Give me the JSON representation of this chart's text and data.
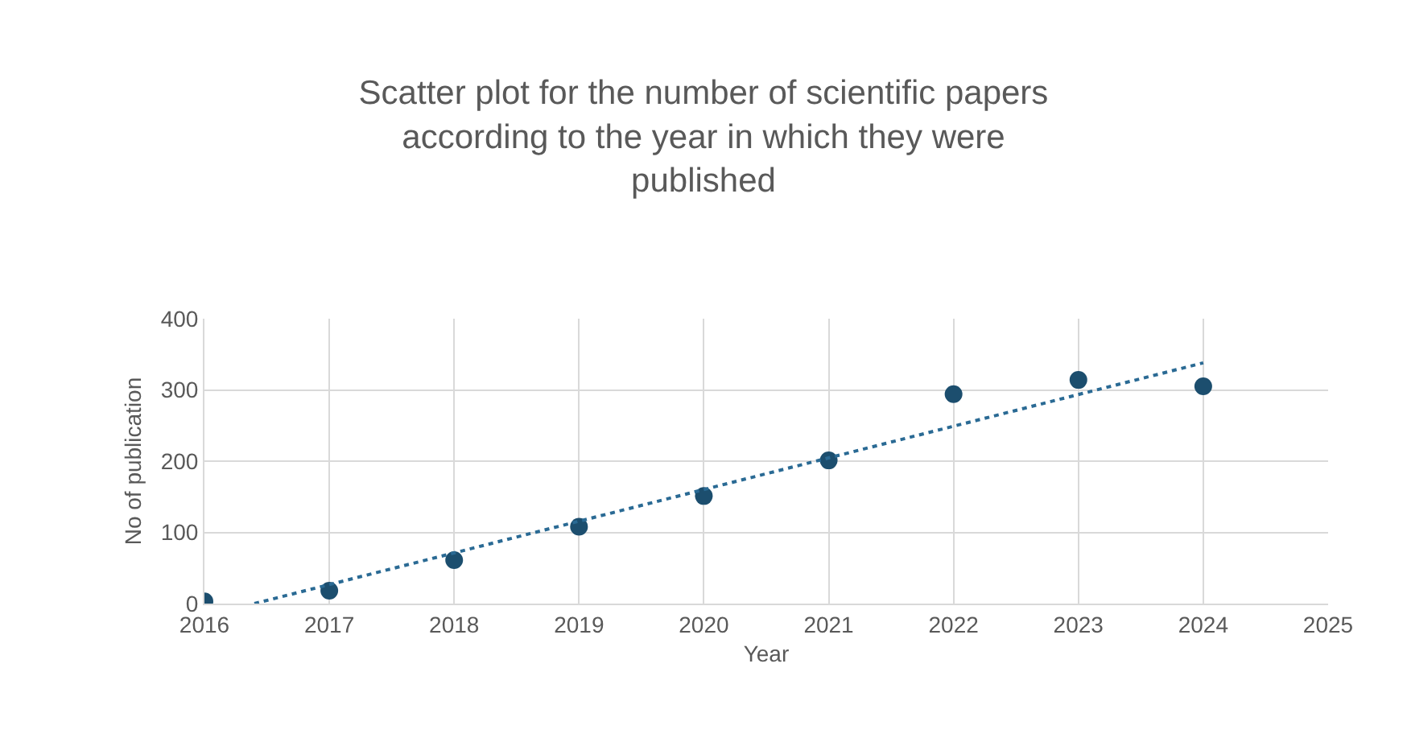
{
  "chart_data": {
    "type": "scatter",
    "title": "Scatter plot for the number of scientific papers according to the year in which they were published",
    "xlabel": "Year",
    "ylabel": "No of publication",
    "x": [
      2016,
      2017,
      2018,
      2019,
      2020,
      2021,
      2022,
      2023,
      2024
    ],
    "series": [
      {
        "color": "#1c4e6e",
        "values": [
          3,
          18,
          61,
          108,
          151,
          201,
          294,
          314,
          305
        ],
        "marker": "circle"
      },
      {
        "type": "line",
        "color": "#2a6a94",
        "x": [
          2016.4,
          2024
        ],
        "values": [
          0,
          338
        ],
        "line_style": "dotted",
        "marker": "none"
      }
    ],
    "xlim": [
      2016,
      2025
    ],
    "xticks": [
      2016,
      2017,
      2018,
      2019,
      2020,
      2021,
      2022,
      2023,
      2024,
      2025
    ],
    "ylim": [
      0,
      400
    ],
    "yticks": [
      0,
      100,
      200,
      300,
      400
    ],
    "grid": true
  }
}
